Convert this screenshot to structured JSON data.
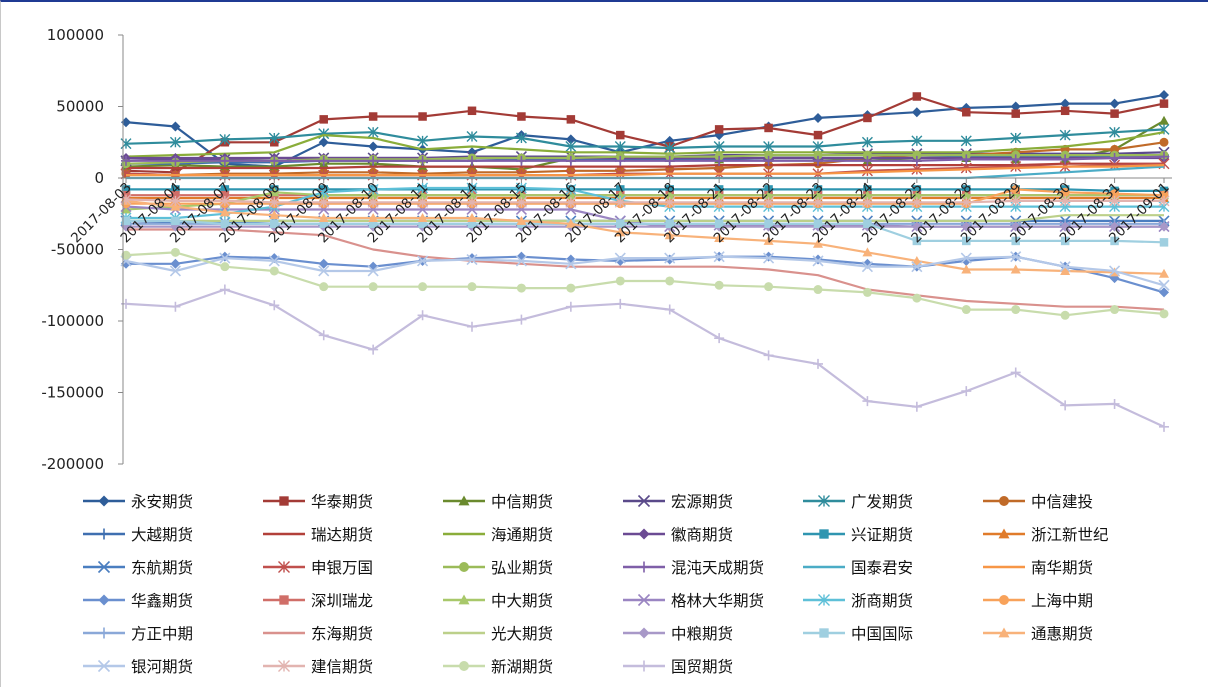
{
  "chart_data": {
    "type": "line",
    "title": "",
    "xlabel": "",
    "ylabel": "",
    "ylim": [
      -200000,
      100000
    ],
    "yticks": [
      100000,
      50000,
      0,
      -50000,
      -100000,
      -150000,
      -200000
    ],
    "grid": false,
    "legend_position": "bottom",
    "categories": [
      "2017-08-03",
      "2017-08-04",
      "2017-08-07",
      "2017-08-08",
      "2017-08-09",
      "2017-08-10",
      "2017-08-11",
      "2017-08-14",
      "2017-08-15",
      "2017-08-16",
      "2017-08-17",
      "2017-08-18",
      "2017-08-21",
      "2017-08-22",
      "2017-08-23",
      "2017-08-24",
      "2017-08-25",
      "2017-08-28",
      "2017-08-29",
      "2017-08-30",
      "2017-08-31",
      "2017-09-01"
    ],
    "series": [
      {
        "name": "永安期货",
        "color": "#2e5d99",
        "marker": "diamond",
        "values": [
          39000,
          36000,
          10000,
          8000,
          25000,
          22000,
          20000,
          18000,
          30000,
          27000,
          18000,
          26000,
          30000,
          36000,
          42000,
          44000,
          46000,
          49000,
          50000,
          52000,
          52000,
          58000
        ]
      },
      {
        "name": "华泰期货",
        "color": "#a33b36",
        "marker": "square",
        "values": [
          5000,
          4000,
          25000,
          25000,
          41000,
          43000,
          43000,
          47000,
          43000,
          41000,
          30000,
          22000,
          34000,
          35000,
          30000,
          42000,
          57000,
          46000,
          45000,
          47000,
          45000,
          52000
        ]
      },
      {
        "name": "中信期货",
        "color": "#6a8a2e",
        "marker": "triangle",
        "values": [
          8000,
          9000,
          8000,
          8000,
          10000,
          10000,
          8000,
          8000,
          6000,
          14000,
          15000,
          14000,
          13000,
          14000,
          14000,
          12000,
          14000,
          14000,
          13000,
          13000,
          20000,
          40000
        ]
      },
      {
        "name": "宏源期货",
        "color": "#5a4a8a",
        "marker": "x",
        "values": [
          12000,
          13000,
          13000,
          14000,
          14000,
          14000,
          14000,
          15000,
          15000,
          15000,
          15000,
          15000,
          16000,
          16000,
          16000,
          17000,
          17000,
          17000,
          17000,
          17000,
          17000,
          18000
        ]
      },
      {
        "name": "广发期货",
        "color": "#2f8c9c",
        "marker": "star",
        "values": [
          24000,
          25000,
          27000,
          28000,
          31000,
          32000,
          26000,
          29000,
          28000,
          22000,
          22000,
          21000,
          22000,
          22000,
          22000,
          25000,
          26000,
          26000,
          28000,
          30000,
          32000,
          34000
        ]
      },
      {
        "name": "中信建投",
        "color": "#c06a28",
        "marker": "circle",
        "values": [
          3000,
          2000,
          3000,
          3000,
          4000,
          4000,
          3000,
          4000,
          4000,
          5000,
          5000,
          6000,
          7000,
          9000,
          10000,
          14000,
          16000,
          16000,
          18000,
          20000,
          20000,
          25000
        ]
      },
      {
        "name": "大越期货",
        "color": "#3f6fb0",
        "marker": "plus",
        "values": [
          10000,
          10000,
          11000,
          11000,
          12000,
          12000,
          12000,
          12000,
          13000,
          13000,
          13000,
          13000,
          13000,
          14000,
          14000,
          14000,
          14000,
          15000,
          15000,
          15000,
          15000,
          16000
        ]
      },
      {
        "name": "瑞达期货",
        "color": "#b2403a",
        "marker": "none",
        "values": [
          7000,
          7000,
          7000,
          7000,
          7000,
          8000,
          8000,
          8000,
          8000,
          8000,
          8000,
          8000,
          9000,
          9000,
          9000,
          9000,
          9000,
          9000,
          9000,
          10000,
          10000,
          10000
        ]
      },
      {
        "name": "海通期货",
        "color": "#8aad3a",
        "marker": "none",
        "values": [
          15000,
          16000,
          17000,
          18000,
          30000,
          28000,
          20000,
          22000,
          20000,
          18000,
          18000,
          17000,
          18000,
          18000,
          18000,
          18000,
          18000,
          18000,
          20000,
          22000,
          26000,
          32000
        ]
      },
      {
        "name": "徽商期货",
        "color": "#6b4a93",
        "marker": "diamond",
        "values": [
          14000,
          14000,
          14000,
          14000,
          14000,
          14000,
          14000,
          14000,
          14000,
          14000,
          14000,
          14000,
          14000,
          14000,
          14000,
          14000,
          14000,
          14000,
          14000,
          14000,
          14000,
          14000
        ]
      },
      {
        "name": "兴证期货",
        "color": "#2f95b0",
        "marker": "square",
        "values": [
          -8000,
          -8000,
          -8000,
          -8000,
          -8000,
          -8000,
          -8000,
          -8000,
          -8000,
          -8000,
          -8000,
          -8000,
          -8000,
          -8000,
          -8000,
          -8000,
          -8000,
          -8000,
          -8000,
          -8000,
          -9000,
          -9000
        ]
      },
      {
        "name": "浙江新世纪",
        "color": "#e07b2a",
        "marker": "triangle",
        "values": [
          -14000,
          -14000,
          -14000,
          -14000,
          -14000,
          -14000,
          -14000,
          -14000,
          -14000,
          -14000,
          -14000,
          -14000,
          -14000,
          -14000,
          -14000,
          -14000,
          -14000,
          -14000,
          -14000,
          -14000,
          -14000,
          -14000
        ]
      },
      {
        "name": "东航期货",
        "color": "#4a7ec0",
        "marker": "x",
        "values": [
          -30000,
          -31000,
          -31000,
          -30000,
          -30000,
          -30000,
          -30000,
          -30000,
          -30000,
          -30000,
          -30000,
          -30000,
          -30000,
          -30000,
          -30000,
          -30000,
          -30000,
          -30000,
          -30000,
          -30000,
          -30000,
          -30000
        ]
      },
      {
        "name": "申银万国",
        "color": "#c0504d",
        "marker": "star",
        "values": [
          3000,
          2000,
          2000,
          2000,
          2000,
          2000,
          2000,
          2000,
          2000,
          2000,
          3000,
          3000,
          3000,
          3000,
          3000,
          5000,
          6000,
          7000,
          8000,
          8000,
          9000,
          10000
        ]
      },
      {
        "name": "弘业期货",
        "color": "#9bbb59",
        "marker": "circle",
        "values": [
          10000,
          11000,
          12000,
          12000,
          13000,
          13000,
          13000,
          14000,
          14000,
          14000,
          15000,
          15000,
          15000,
          16000,
          16000,
          16000,
          16000,
          16000,
          16000,
          16000,
          16000,
          16000
        ]
      },
      {
        "name": "混沌天成期货",
        "color": "#7f5fa8",
        "marker": "plus",
        "values": [
          12000,
          12000,
          12000,
          12000,
          12000,
          12000,
          12000,
          12000,
          12000,
          12000,
          12000,
          12000,
          12000,
          12000,
          12000,
          12000,
          12000,
          13000,
          13000,
          13000,
          14000,
          15000
        ]
      },
      {
        "name": "国泰君安",
        "color": "#4bacc6",
        "marker": "none",
        "values": [
          0,
          0,
          0,
          0,
          0,
          0,
          0,
          0,
          0,
          0,
          0,
          0,
          0,
          0,
          0,
          0,
          0,
          0,
          2000,
          4000,
          6000,
          8000
        ]
      },
      {
        "name": "南华期货",
        "color": "#f79646",
        "marker": "none",
        "values": [
          2000,
          2000,
          2000,
          2000,
          2000,
          2000,
          2000,
          2000,
          2000,
          2000,
          2000,
          3000,
          3000,
          3000,
          3000,
          4000,
          5000,
          6000,
          7000,
          8000,
          8000,
          9000
        ]
      },
      {
        "name": "华鑫期货",
        "color": "#6a8fcf",
        "marker": "diamond",
        "values": [
          -60000,
          -60000,
          -55000,
          -56000,
          -60000,
          -62000,
          -58000,
          -56000,
          -55000,
          -57000,
          -58000,
          -57000,
          -55000,
          -55000,
          -57000,
          -60000,
          -62000,
          -58000,
          -55000,
          -62000,
          -70000,
          -80000
        ]
      },
      {
        "name": "深圳瑞龙",
        "color": "#d06e68",
        "marker": "square",
        "values": [
          -12000,
          -12000,
          -12000,
          -12000,
          -12000,
          -12000,
          -12000,
          -12000,
          -12000,
          -12000,
          -12000,
          -12000,
          -12000,
          -12000,
          -12000,
          -12000,
          -12000,
          -12000,
          -12000,
          -12000,
          -12000,
          -12000
        ]
      },
      {
        "name": "中大期货",
        "color": "#a8c86a",
        "marker": "triangle",
        "values": [
          -22000,
          -20000,
          -18000,
          -10000,
          -12000,
          -12000,
          -12000,
          -12000,
          -12000,
          -12000,
          -12000,
          -12000,
          -12000,
          -12000,
          -12000,
          -12000,
          -12000,
          -12000,
          -12000,
          -12000,
          -12000,
          -12000
        ]
      },
      {
        "name": "格林大华期货",
        "color": "#9a85c2",
        "marker": "x",
        "values": [
          -20000,
          -22000,
          -22000,
          -22000,
          -22000,
          -22000,
          -22000,
          -22000,
          -22000,
          -22000,
          -30000,
          -34000,
          -33000,
          -33000,
          -33000,
          -33000,
          -34000,
          -34000,
          -34000,
          -34000,
          -34000,
          -34000
        ]
      },
      {
        "name": "浙商期货",
        "color": "#5ec0d8",
        "marker": "star",
        "values": [
          -28000,
          -28000,
          -25000,
          -20000,
          -10000,
          -8000,
          -7000,
          -7000,
          -7000,
          -8000,
          -16000,
          -20000,
          -20000,
          -20000,
          -20000,
          -20000,
          -20000,
          -20000,
          -20000,
          -20000,
          -20000,
          -20000
        ]
      },
      {
        "name": "上海中期",
        "color": "#f8a25a",
        "marker": "circle",
        "values": [
          -18000,
          -18000,
          -18000,
          -18000,
          -18000,
          -18000,
          -18000,
          -18000,
          -18000,
          -18000,
          -18000,
          -18000,
          -18000,
          -18000,
          -18000,
          -18000,
          -18000,
          -18000,
          -8000,
          -10000,
          -11000,
          -12000
        ]
      },
      {
        "name": "方正中期",
        "color": "#8aa8d8",
        "marker": "plus",
        "values": [
          -32000,
          -32000,
          -32000,
          -32000,
          -32000,
          -32000,
          -32000,
          -32000,
          -32000,
          -32000,
          -32000,
          -32000,
          -32000,
          -32000,
          -32000,
          -32000,
          -32000,
          -32000,
          -32000,
          -32000,
          -32000,
          -32000
        ]
      },
      {
        "name": "东海期货",
        "color": "#d9918d",
        "marker": "none",
        "values": [
          -36000,
          -36000,
          -36000,
          -38000,
          -40000,
          -50000,
          -55000,
          -58000,
          -60000,
          -62000,
          -62000,
          -62000,
          -62000,
          -64000,
          -68000,
          -78000,
          -82000,
          -86000,
          -88000,
          -90000,
          -90000,
          -92000
        ]
      },
      {
        "name": "光大期货",
        "color": "#bcd08a",
        "marker": "none",
        "values": [
          -30000,
          -30000,
          -30000,
          -30000,
          -30000,
          -30000,
          -30000,
          -30000,
          -30000,
          -30000,
          -30000,
          -30000,
          -30000,
          -30000,
          -30000,
          -30000,
          -30000,
          -30000,
          -30000,
          -26000,
          -26000,
          -26000
        ]
      },
      {
        "name": "中粮期货",
        "color": "#a898c8",
        "marker": "diamond",
        "values": [
          -34000,
          -34000,
          -34000,
          -34000,
          -34000,
          -34000,
          -34000,
          -34000,
          -34000,
          -34000,
          -34000,
          -34000,
          -34000,
          -34000,
          -34000,
          -34000,
          -34000,
          -34000,
          -34000,
          -34000,
          -34000,
          -34000
        ]
      },
      {
        "name": "中国国际",
        "color": "#9fcfe0",
        "marker": "square",
        "values": [
          -30000,
          -30000,
          -32000,
          -32000,
          -32000,
          -32000,
          -32000,
          -32000,
          -32000,
          -32000,
          -32000,
          -32000,
          -32000,
          -32000,
          -32000,
          -32000,
          -44000,
          -44000,
          -44000,
          -44000,
          -44000,
          -45000
        ]
      },
      {
        "name": "通惠期货",
        "color": "#f8b27a",
        "marker": "triangle",
        "values": [
          -16000,
          -20000,
          -24000,
          -26000,
          -28000,
          -28000,
          -28000,
          -28000,
          -30000,
          -32000,
          -38000,
          -40000,
          -42000,
          -44000,
          -46000,
          -52000,
          -58000,
          -64000,
          -64000,
          -65000,
          -66000,
          -67000
        ]
      },
      {
        "name": "银河期货",
        "color": "#b4c8e8",
        "marker": "x",
        "values": [
          -58000,
          -65000,
          -56000,
          -58000,
          -65000,
          -65000,
          -58000,
          -57000,
          -58000,
          -60000,
          -56000,
          -56000,
          -55000,
          -56000,
          -58000,
          -62000,
          -62000,
          -56000,
          -55000,
          -62000,
          -65000,
          -75000
        ]
      },
      {
        "name": "建信期货",
        "color": "#e2b4b0",
        "marker": "star",
        "values": [
          -15000,
          -16000,
          -16000,
          -17000,
          -17000,
          -17000,
          -17000,
          -17000,
          -17000,
          -17000,
          -17000,
          -17000,
          -17000,
          -17000,
          -17000,
          -17000,
          -17000,
          -17000,
          -16000,
          -16000,
          -16000,
          -16000
        ]
      },
      {
        "name": "新湖期货",
        "color": "#c8dcac",
        "marker": "circle",
        "values": [
          -54000,
          -52000,
          -62000,
          -65000,
          -76000,
          -76000,
          -76000,
          -76000,
          -77000,
          -77000,
          -72000,
          -72000,
          -75000,
          -76000,
          -78000,
          -80000,
          -84000,
          -92000,
          -92000,
          -96000,
          -92000,
          -95000
        ]
      },
      {
        "name": "国贸期货",
        "color": "#c4bcdc",
        "marker": "plus",
        "values": [
          -88000,
          -90000,
          -78000,
          -89000,
          -110000,
          -120000,
          -96000,
          -104000,
          -99000,
          -90000,
          -88000,
          -92000,
          -112000,
          -124000,
          -130000,
          -156000,
          -160000,
          -149000,
          -136000,
          -159000,
          -158000,
          -174000
        ]
      }
    ]
  }
}
